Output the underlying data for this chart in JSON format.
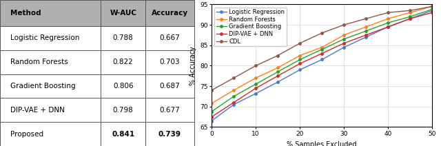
{
  "table": {
    "headers": [
      "Method",
      "W-AUC",
      "Accuracy"
    ],
    "rows": [
      [
        "Logistic Regression",
        "0.788",
        "0.667"
      ],
      [
        "Random Forests",
        "0.822",
        "0.703"
      ],
      [
        "Gradient Boosting",
        "0.806",
        "0.687"
      ],
      [
        "DIP-VAE + DNN",
        "0.798",
        "0.677"
      ],
      [
        "Proposed",
        "0.841",
        "0.739"
      ]
    ],
    "bold_last_row": [
      1,
      2
    ],
    "header_color": "#b0b0b0",
    "edge_color": "#555555"
  },
  "chart": {
    "x": [
      0,
      5,
      10,
      15,
      20,
      25,
      30,
      35,
      40,
      45,
      50
    ],
    "series": [
      {
        "label": "Logistic Regression",
        "color": "#4878cf",
        "values": [
          66.5,
          70.5,
          73.2,
          76.0,
          79.0,
          81.5,
          84.5,
          87.0,
          89.5,
          91.5,
          93.5
        ]
      },
      {
        "label": "Random Forests",
        "color": "#ff7f0e",
        "values": [
          70.8,
          74.0,
          77.0,
          79.5,
          82.5,
          84.5,
          87.5,
          89.5,
          91.5,
          93.0,
          94.5
        ]
      },
      {
        "label": "Gradient Boosting",
        "color": "#2ca02c",
        "values": [
          68.8,
          72.5,
          75.5,
          78.5,
          81.5,
          84.0,
          86.5,
          88.5,
          90.5,
          92.0,
          93.8
        ]
      },
      {
        "label": "DIP-VAE + DNN",
        "color": "#d62728",
        "values": [
          67.5,
          71.0,
          74.5,
          77.5,
          80.5,
          83.0,
          85.5,
          87.5,
          89.5,
          91.5,
          93.0
        ]
      },
      {
        "label": "CDL",
        "color": "#8c564b",
        "values": [
          74.0,
          77.0,
          80.0,
          82.5,
          85.5,
          88.0,
          90.0,
          91.5,
          93.0,
          93.5,
          94.5
        ]
      }
    ],
    "xlabel": "% Samples Excluded",
    "ylabel": "% Accuracy",
    "xlim": [
      0,
      50
    ],
    "ylim": [
      65,
      95
    ],
    "xticks": [
      0,
      10,
      20,
      30,
      40,
      50
    ],
    "yticks": [
      65,
      70,
      75,
      80,
      85,
      90,
      95
    ]
  }
}
